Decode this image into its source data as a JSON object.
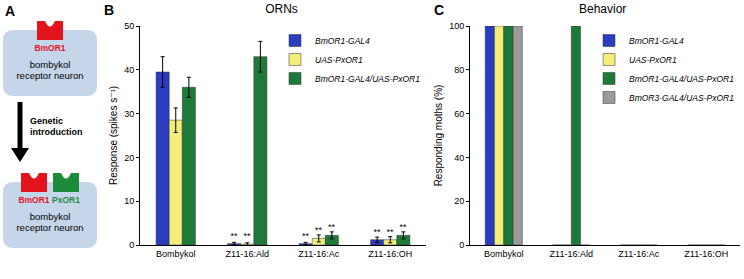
{
  "diagram": {
    "label": "A",
    "cells": [
      {
        "receptors": [
          {
            "name": "BmOR1",
            "color": "#e3141c"
          }
        ],
        "text": [
          "bombykol",
          "receptor neuron"
        ]
      },
      {
        "receptors": [
          {
            "name": "BmOR1",
            "color": "#e3141c"
          },
          {
            "name": "PxOR1",
            "color": "#1e8a3c"
          }
        ],
        "text": [
          "bombykol",
          "receptor neuron"
        ]
      }
    ],
    "arrow_text": [
      "Genetic",
      "introduction"
    ]
  },
  "chart_data": [
    {
      "label": "B",
      "type": "bar",
      "title": "ORNs",
      "categories": [
        "Bombykol",
        "Z11-16:Ald",
        "Z11-16:Ac",
        "Z11-16:OH"
      ],
      "y_label": "Response (spikes s⁻¹)",
      "ylim": [
        0,
        50
      ],
      "yticks": [
        0,
        10,
        20,
        30,
        40,
        50
      ],
      "legend": "upper right",
      "series": [
        {
          "name": "BmOR1-GAL4",
          "color": "#2a3cc0",
          "values": [
            39.5,
            0.3,
            0.3,
            1.2
          ],
          "errors": [
            3.5,
            0.3,
            0.3,
            0.6
          ],
          "significance": [
            null,
            "**",
            "**",
            "**"
          ]
        },
        {
          "name": "UAS-PxOR1",
          "color": "#f3ee7a",
          "values": [
            28.5,
            0.2,
            1.5,
            1.2
          ],
          "errors": [
            2.8,
            0.3,
            0.8,
            0.7
          ],
          "significance": [
            null,
            "**",
            "**",
            "**"
          ]
        },
        {
          "name": "BmOR1-GAL4/UAS-PxOR1",
          "color": "#1e7a3a",
          "values": [
            36,
            43,
            2.2,
            2.2
          ],
          "errors": [
            2.3,
            3.5,
            0.8,
            0.8
          ],
          "significance": [
            null,
            null,
            "**",
            "**"
          ]
        }
      ]
    },
    {
      "label": "C",
      "type": "bar",
      "title": "Behavior",
      "categories": [
        "Bombykol",
        "Z11-16:Ald",
        "Z11-16:Ac",
        "Z11-16:OH"
      ],
      "y_label": "Responding moths (%)",
      "ylim": [
        0,
        100
      ],
      "yticks": [
        0,
        20,
        40,
        60,
        80,
        100
      ],
      "legend": "upper right",
      "series": [
        {
          "name": "BmOR1-GAL4",
          "color": "#2a3cc0",
          "values": [
            100,
            0,
            0,
            0
          ]
        },
        {
          "name": "UAS-PxOR1",
          "color": "#f3ee7a",
          "values": [
            100,
            0,
            0,
            0
          ]
        },
        {
          "name": "BmOR1-GAL4/UAS-PxOR1",
          "color": "#1e7a3a",
          "values": [
            100,
            100,
            0,
            0
          ]
        },
        {
          "name": "BmOR3-GAL4/UAS-PxOR1",
          "color": "#9a9a9a",
          "values": [
            100,
            0,
            0,
            0
          ]
        }
      ]
    }
  ]
}
